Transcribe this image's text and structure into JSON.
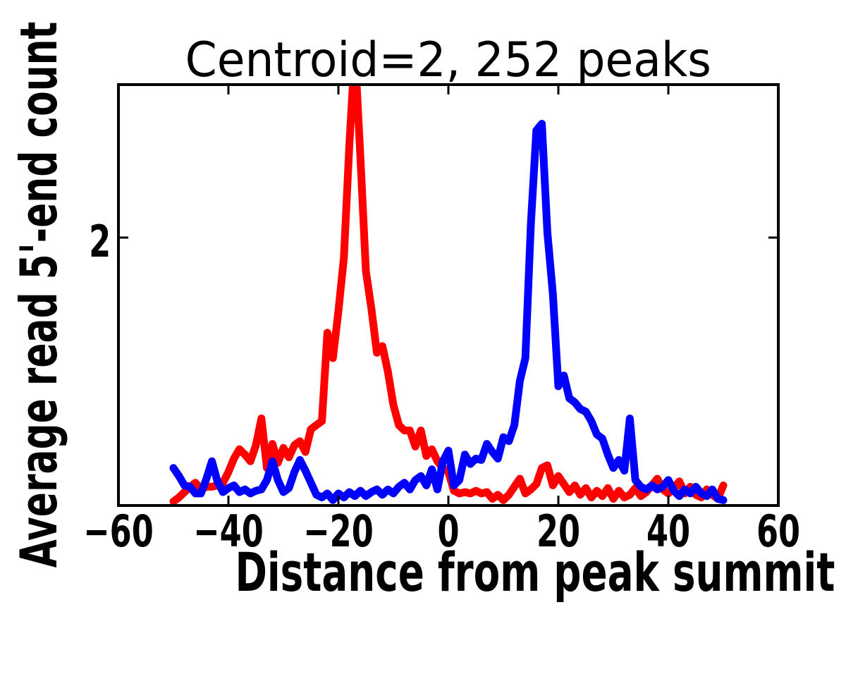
{
  "figure": {
    "background": "#ffffff",
    "text_color": "#000000"
  },
  "chart_data": {
    "type": "line",
    "title": "Centroid=2, 252 peaks",
    "xlabel": "Distance from peak summit",
    "ylabel": "Average read 5'-end count",
    "xlim": [
      -60,
      60
    ],
    "ylim": [
      0,
      3.142
    ],
    "grid": false,
    "legend": "none",
    "tick_direction": "in",
    "x_ticks": [
      -60,
      -40,
      -20,
      0,
      20,
      40,
      60
    ],
    "x_tick_labels": [
      "−60",
      "−40",
      "−20",
      "0",
      "20",
      "40",
      "60"
    ],
    "y_ticks": [
      2
    ],
    "y_tick_labels": [
      "2"
    ],
    "x": [
      -50,
      -49,
      -48,
      -47,
      -46,
      -45,
      -44,
      -43,
      -42,
      -41,
      -40,
      -39,
      -38,
      -37,
      -36,
      -35,
      -34,
      -33,
      -32,
      -31,
      -30,
      -29,
      -28,
      -27,
      -26,
      -25,
      -24,
      -23,
      -22,
      -21,
      -20,
      -19,
      -18,
      -17,
      -16,
      -15,
      -14,
      -13,
      -12,
      -11,
      -10,
      -9,
      -8,
      -7,
      -6,
      -5,
      -4,
      -3,
      -2,
      -1,
      0,
      1,
      2,
      3,
      4,
      5,
      6,
      7,
      8,
      9,
      10,
      11,
      12,
      13,
      14,
      15,
      16,
      17,
      18,
      19,
      20,
      21,
      22,
      23,
      24,
      25,
      26,
      27,
      28,
      29,
      30,
      31,
      32,
      33,
      34,
      35,
      36,
      37,
      38,
      39,
      40,
      41,
      42,
      43,
      44,
      45,
      46,
      47,
      48,
      49,
      50
    ],
    "series": [
      {
        "name": "red-strand",
        "color": "#ff0000",
        "peak_x": -17,
        "values": [
          0.03,
          0.06,
          0.1,
          0.14,
          0.17,
          0.12,
          0.14,
          0.14,
          0.15,
          0.17,
          0.25,
          0.35,
          0.42,
          0.38,
          0.33,
          0.45,
          0.65,
          0.28,
          0.46,
          0.32,
          0.43,
          0.36,
          0.45,
          0.48,
          0.4,
          0.57,
          0.6,
          0.63,
          1.29,
          1.1,
          1.45,
          1.85,
          2.7,
          3.4,
          2.6,
          1.75,
          1.47,
          1.14,
          1.19,
          1.0,
          0.75,
          0.6,
          0.56,
          0.56,
          0.44,
          0.56,
          0.37,
          0.42,
          0.33,
          0.28,
          0.25,
          0.11,
          0.09,
          0.1,
          0.09,
          0.11,
          0.09,
          0.1,
          0.05,
          0.08,
          0.04,
          0.08,
          0.14,
          0.2,
          0.09,
          0.12,
          0.16,
          0.28,
          0.3,
          0.15,
          0.22,
          0.16,
          0.1,
          0.15,
          0.08,
          0.13,
          0.06,
          0.11,
          0.07,
          0.13,
          0.05,
          0.11,
          0.06,
          0.08,
          0.13,
          0.07,
          0.1,
          0.15,
          0.2,
          0.12,
          0.09,
          0.13,
          0.18,
          0.09,
          0.14,
          0.08,
          0.06,
          0.12,
          0.08,
          0.05,
          0.15
        ]
      },
      {
        "name": "blue-strand",
        "color": "#0000ff",
        "peak_x": 17,
        "values": [
          0.28,
          0.22,
          0.15,
          0.14,
          0.09,
          0.09,
          0.2,
          0.33,
          0.18,
          0.1,
          0.13,
          0.15,
          0.1,
          0.12,
          0.09,
          0.11,
          0.12,
          0.19,
          0.33,
          0.19,
          0.1,
          0.13,
          0.25,
          0.34,
          0.26,
          0.17,
          0.08,
          0.06,
          0.09,
          0.04,
          0.09,
          0.06,
          0.1,
          0.07,
          0.11,
          0.07,
          0.1,
          0.12,
          0.08,
          0.12,
          0.09,
          0.14,
          0.17,
          0.12,
          0.19,
          0.22,
          0.15,
          0.27,
          0.12,
          0.33,
          0.41,
          0.15,
          0.19,
          0.38,
          0.31,
          0.35,
          0.34,
          0.46,
          0.4,
          0.35,
          0.51,
          0.48,
          0.6,
          0.93,
          1.1,
          2.1,
          2.8,
          2.85,
          2.04,
          1.58,
          0.89,
          0.97,
          0.8,
          0.77,
          0.72,
          0.7,
          0.63,
          0.53,
          0.5,
          0.38,
          0.28,
          0.34,
          0.26,
          0.65,
          0.19,
          0.14,
          0.12,
          0.15,
          0.12,
          0.14,
          0.19,
          0.11,
          0.07,
          0.12,
          0.09,
          0.14,
          0.09,
          0.07,
          0.12,
          0.05,
          0.04
        ]
      }
    ]
  }
}
